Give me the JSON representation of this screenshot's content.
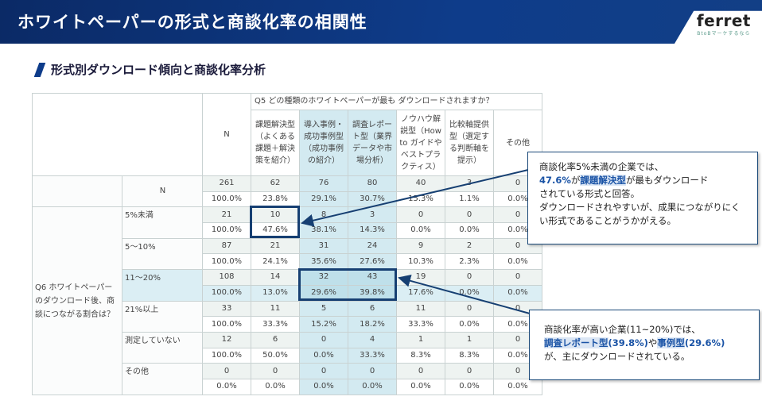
{
  "header": {
    "title": "ホワイトペーパーの形式と商談化率の相関性",
    "logo_word": "ferret",
    "logo_tagline": "BtoBマーケするなら"
  },
  "subtitle": "形式別ダウンロード傾向と商談化率分析",
  "table": {
    "question_col": "Q5 どの種類のホワイトペーパーが最も ダウンロードされますか？",
    "columns": [
      "N",
      "課題解決型（よくある課題＋解決策を紹介）",
      "導入事例・成功事例型（成功事例の紹介）",
      "調査レポート型（業界データや市場分析）",
      "ノウハウ解説型（How to ガイドやベストプラクティス）",
      "比較軸提供型（選定する判断軸を提示）",
      "その他"
    ],
    "total_label": "N",
    "question_row": "Q6 ホワイトペーパーのダウンロード後、商談につながる割合は？",
    "rows": [
      {
        "label": "N",
        "counts": [
          "261",
          "62",
          "76",
          "80",
          "40",
          "3",
          "0"
        ],
        "pcts": [
          "100.0%",
          "23.8%",
          "29.1%",
          "30.7%",
          "15.3%",
          "1.1%",
          "0.0%"
        ]
      },
      {
        "label": "5%未満",
        "counts": [
          "21",
          "10",
          "8",
          "3",
          "0",
          "0",
          "0"
        ],
        "pcts": [
          "100.0%",
          "47.6%",
          "38.1%",
          "14.3%",
          "0.0%",
          "0.0%",
          "0.0%"
        ]
      },
      {
        "label": "5～10%",
        "counts": [
          "87",
          "21",
          "31",
          "24",
          "9",
          "2",
          "0"
        ],
        "pcts": [
          "100.0%",
          "24.1%",
          "35.6%",
          "27.6%",
          "10.3%",
          "2.3%",
          "0.0%"
        ]
      },
      {
        "label": "11～20%",
        "counts": [
          "108",
          "14",
          "32",
          "43",
          "19",
          "0",
          "0"
        ],
        "pcts": [
          "100.0%",
          "13.0%",
          "29.6%",
          "39.8%",
          "17.6%",
          "0.0%",
          "0.0%"
        ]
      },
      {
        "label": "21%以上",
        "counts": [
          "33",
          "11",
          "5",
          "6",
          "11",
          "0",
          "0"
        ],
        "pcts": [
          "100.0%",
          "33.3%",
          "15.2%",
          "18.2%",
          "33.3%",
          "0.0%",
          "0.0%"
        ]
      },
      {
        "label": "測定していない",
        "counts": [
          "12",
          "6",
          "0",
          "4",
          "1",
          "1",
          "0"
        ],
        "pcts": [
          "100.0%",
          "50.0%",
          "0.0%",
          "33.3%",
          "8.3%",
          "8.3%",
          "0.0%"
        ]
      },
      {
        "label": "その他",
        "counts": [
          "0",
          "0",
          "0",
          "0",
          "0",
          "0",
          "0"
        ],
        "pcts": [
          "0.0%",
          "0.0%",
          "0.0%",
          "0.0%",
          "0.0%",
          "0.0%",
          "0.0%"
        ]
      }
    ]
  },
  "callout1": {
    "l1": "商談化率5%未満の企業では、",
    "pct": "47.6%",
    "ga": "が",
    "type": "課題解決型",
    "l2rest": "が最もダウンロード",
    "l3": "されている形式と回答。",
    "l4": "ダウンロードされやすいが、成果につながりにく",
    "l5": "い形式であることがうかがえる。"
  },
  "callout2": {
    "l1": "商談化率が高い企業(11~20%)では、",
    "t1": "調査レポート型",
    "p1": "(39.8%)",
    "ya": "や",
    "t2": "事例型",
    "p2": "(29.6%)",
    "l3": "が、主にダウンロードされている。"
  },
  "colors": {
    "banner": "#0e3c8a",
    "highlight": "#d3eaf1",
    "box": "#163f72"
  }
}
